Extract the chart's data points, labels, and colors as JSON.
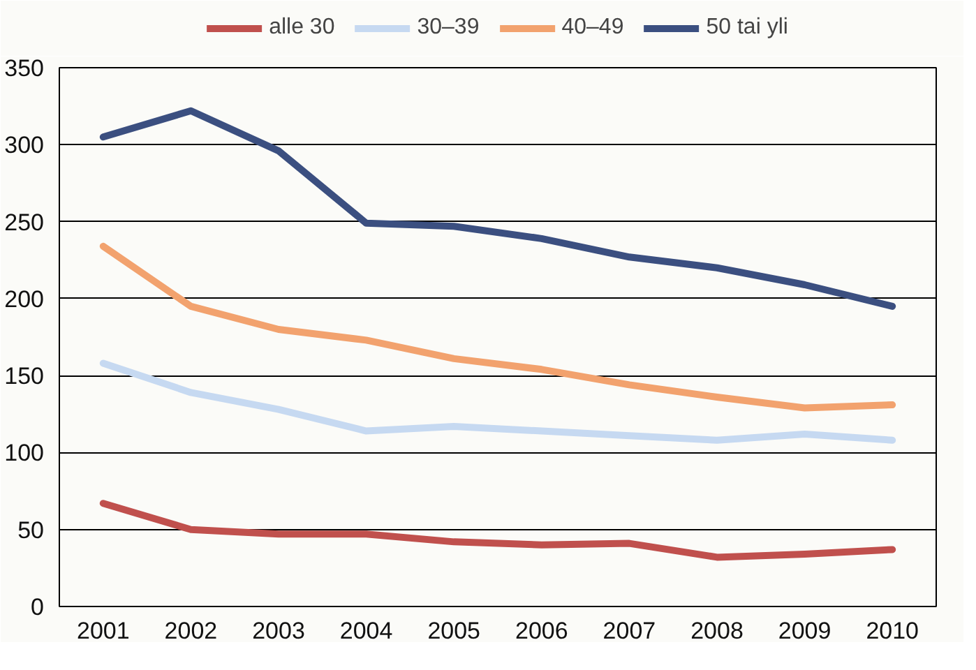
{
  "chart_data": {
    "type": "line",
    "categories": [
      "2001",
      "2002",
      "2003",
      "2004",
      "2005",
      "2006",
      "2007",
      "2008",
      "2009",
      "2010"
    ],
    "series": [
      {
        "name": "alle 30",
        "color": "#c0504d",
        "values": [
          67,
          50,
          47,
          47,
          42,
          40,
          41,
          32,
          34,
          37
        ]
      },
      {
        "name": "30–39",
        "color": "#c6d9f1",
        "values": [
          158,
          139,
          128,
          114,
          117,
          114,
          111,
          108,
          112,
          108
        ]
      },
      {
        "name": "40–49",
        "color": "#f2a26e",
        "values": [
          234,
          195,
          180,
          173,
          161,
          154,
          144,
          136,
          129,
          131
        ]
      },
      {
        "name": "50 tai yli",
        "color": "#3b4f80",
        "values": [
          305,
          322,
          296,
          249,
          247,
          239,
          227,
          220,
          209,
          195
        ]
      }
    ],
    "ylim": [
      0,
      350
    ],
    "yticks": [
      0,
      50,
      100,
      150,
      200,
      250,
      300,
      350
    ],
    "grid": "y",
    "legend": "top",
    "marker": "none",
    "line_style": "solid"
  }
}
